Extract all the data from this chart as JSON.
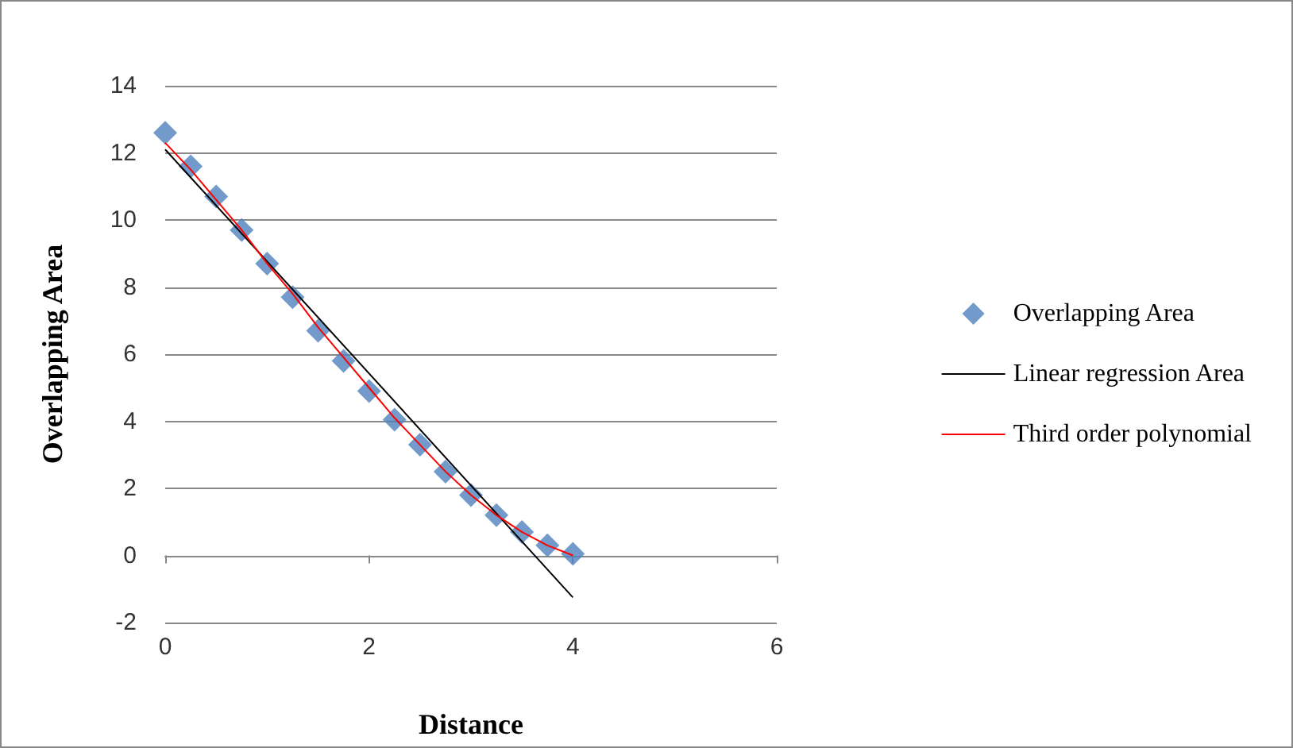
{
  "chart_data": {
    "type": "scatter",
    "xlabel": "Distance",
    "ylabel": "Overlapping Area",
    "xlim": [
      0,
      6
    ],
    "xticks": [
      0,
      2,
      4,
      6
    ],
    "ylim": [
      -2,
      14
    ],
    "yticks": [
      -2,
      0,
      2,
      4,
      6,
      8,
      10,
      12,
      14
    ],
    "grid": "y",
    "legend": "right",
    "series": [
      {
        "name": "Overlapping Area",
        "marker": "diamond",
        "color": "#4f81bd",
        "x": [
          0,
          0.25,
          0.5,
          0.75,
          1,
          1.25,
          1.5,
          1.75,
          2,
          2.25,
          2.5,
          2.75,
          3,
          3.25,
          3.5,
          3.75,
          4
        ],
        "values": [
          12.6,
          11.6,
          10.7,
          9.7,
          8.7,
          7.7,
          6.7,
          5.8,
          4.9,
          4.05,
          3.3,
          2.5,
          1.8,
          1.2,
          0.7,
          0.3,
          0.05
        ]
      },
      {
        "name": "Linear regression Area",
        "type": "line",
        "marker": "none",
        "color": "#000000",
        "x": [
          0,
          4
        ],
        "values": [
          12.1,
          -1.25
        ]
      },
      {
        "name": "Third order polynomial",
        "type": "line",
        "marker": "none",
        "color": "#ff0000",
        "x": [
          0,
          0.25,
          0.5,
          0.75,
          1,
          1.25,
          1.5,
          1.75,
          2,
          2.25,
          2.5,
          2.75,
          3,
          3.25,
          3.5,
          3.75,
          4
        ],
        "values": [
          12.3,
          11.5,
          10.6,
          9.7,
          8.7,
          7.8,
          6.8,
          5.9,
          5.0,
          4.1,
          3.3,
          2.5,
          1.8,
          1.2,
          0.7,
          0.3,
          0.0
        ]
      }
    ]
  }
}
